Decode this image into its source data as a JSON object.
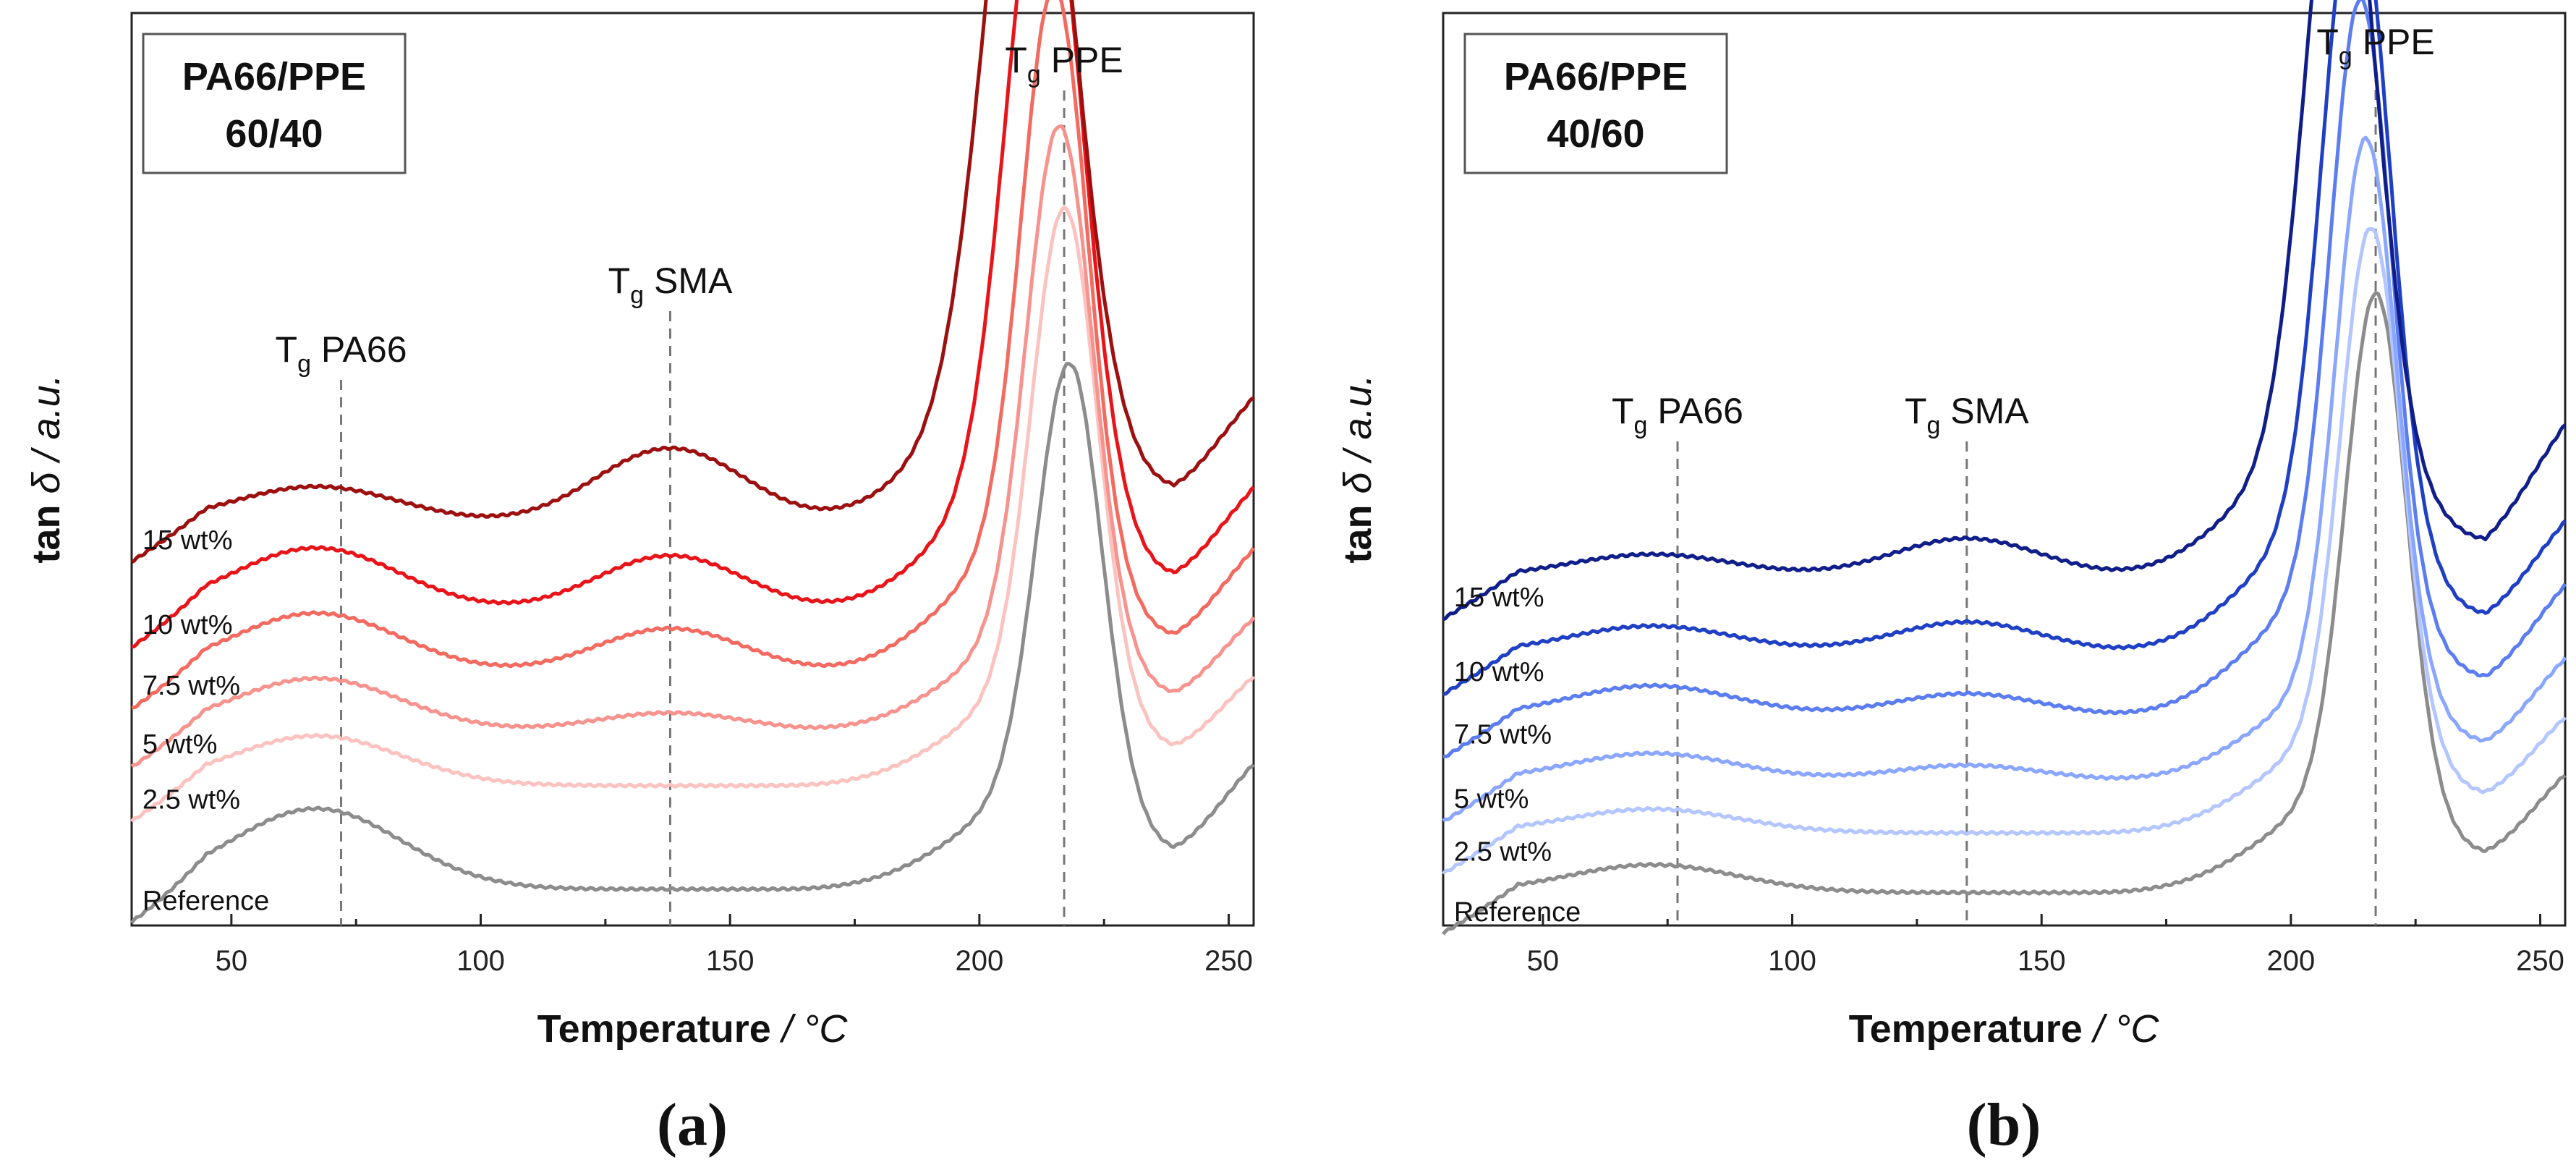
{
  "chart_data": [
    {
      "type": "line",
      "panel_label": "(a)",
      "box_line1": "PA66/PPE",
      "box_line2": "60/40",
      "xlabel_bold": "Temperature",
      "xlabel_unit": " / °C",
      "ylabel_bold": "tan",
      "ylabel_rest": " δ / a.u.",
      "xlim": [
        30,
        255
      ],
      "xticks": [
        "50",
        "100",
        "150",
        "200",
        "250"
      ],
      "annotations": [
        {
          "T": "T",
          "sub": "g",
          "name": " PA66",
          "x": 72
        },
        {
          "T": "T",
          "sub": "g",
          "name": " SMA",
          "x": 138
        },
        {
          "T": "T",
          "sub": "g",
          "name": " PPE",
          "x": 217
        }
      ],
      "series": [
        {
          "name": "Reference",
          "color": "#8c8c8c",
          "label_x": 31,
          "peak_x": 218,
          "peak_h": 0.55,
          "peak_w": 6.5,
          "pa66_h": 0.105,
          "sma_h": 0.0,
          "base": 0.02,
          "tail": 0.14
        },
        {
          "name": "2.5 wt%",
          "color": "#fbc3c0",
          "label_x": 31,
          "peak_x": 217,
          "peak_h": 0.62,
          "peak_w": 6.5,
          "pa66_h": 0.065,
          "sma_h": 0.0,
          "base": 0.155,
          "tail": 0.24
        },
        {
          "name": "5 wt%",
          "color": "#f7938e",
          "label_x": 31,
          "peak_x": 216,
          "peak_h": 0.66,
          "peak_w": 6.5,
          "pa66_h": 0.07,
          "sma_h": 0.025,
          "base": 0.225,
          "tail": 0.32
        },
        {
          "name": "7.5 wt%",
          "color": "#f26a60",
          "label_x": 31,
          "peak_x": 215,
          "peak_h": 0.74,
          "peak_w": 6.5,
          "pa66_h": 0.08,
          "sma_h": 0.06,
          "base": 0.3,
          "tail": 0.42
        },
        {
          "name": "10 wt%",
          "color": "#e8141a",
          "label_x": 31,
          "peak_x": 213,
          "peak_h": 0.85,
          "peak_w": 7.5,
          "pa66_h": 0.085,
          "sma_h": 0.075,
          "base": 0.38,
          "tail": 0.5
        },
        {
          "name": "15 wt%",
          "color": "#9c1010",
          "label_x": 31,
          "peak_x": 210,
          "peak_h": 0.92,
          "peak_w": 8.5,
          "pa66_h": 0.05,
          "sma_h": 0.1,
          "base": 0.495,
          "tail": 0.62
        }
      ]
    },
    {
      "type": "line",
      "panel_label": "(b)",
      "box_line1": "PA66/PPE",
      "box_line2": "40/60",
      "xlabel_bold": "Temperature",
      "xlabel_unit": " / °C",
      "ylabel_bold": "tan",
      "ylabel_rest": " δ / a.u.",
      "xlim": [
        30,
        255
      ],
      "xticks": [
        "50",
        "100",
        "150",
        "200",
        "250"
      ],
      "annotations": [
        {
          "T": "T",
          "sub": "g",
          "name": " PA66",
          "x": 77
        },
        {
          "T": "T",
          "sub": "g",
          "name": " SMA",
          "x": 135
        },
        {
          "T": "T",
          "sub": "g",
          "name": " PPE",
          "x": 217
        }
      ],
      "series": [
        {
          "name": "Reference",
          "color": "#8c8c8c",
          "label_x": 31,
          "peak_x": 217,
          "peak_h": 0.62,
          "peak_w": 6.0,
          "pa66_h": 0.035,
          "sma_h": 0.0,
          "base": 0.015,
          "tail": 0.11
        },
        {
          "name": "2.5 wt%",
          "color": "#b3c6ff",
          "label_x": 31,
          "peak_x": 216,
          "peak_h": 0.63,
          "peak_w": 6.0,
          "pa66_h": 0.03,
          "sma_h": 0.0,
          "base": 0.09,
          "tail": 0.18
        },
        {
          "name": "5 wt%",
          "color": "#8aa6ff",
          "label_x": 31,
          "peak_x": 215,
          "peak_h": 0.68,
          "peak_w": 6.0,
          "pa66_h": 0.035,
          "sma_h": 0.02,
          "base": 0.155,
          "tail": 0.26
        },
        {
          "name": "7.5 wt%",
          "color": "#5b7df0",
          "label_x": 31,
          "peak_x": 214,
          "peak_h": 0.75,
          "peak_w": 6.0,
          "pa66_h": 0.04,
          "sma_h": 0.03,
          "base": 0.235,
          "tail": 0.36
        },
        {
          "name": "10 wt%",
          "color": "#1f3fc4",
          "label_x": 31,
          "peak_x": 213,
          "peak_h": 0.82,
          "peak_w": 6.5,
          "pa66_h": 0.035,
          "sma_h": 0.04,
          "base": 0.315,
          "tail": 0.44
        },
        {
          "name": "15 wt%",
          "color": "#101e8a",
          "label_x": 31,
          "peak_x": 210,
          "peak_h": 0.83,
          "peak_w": 7.0,
          "pa66_h": 0.03,
          "sma_h": 0.05,
          "base": 0.41,
          "tail": 0.58
        }
      ]
    }
  ]
}
